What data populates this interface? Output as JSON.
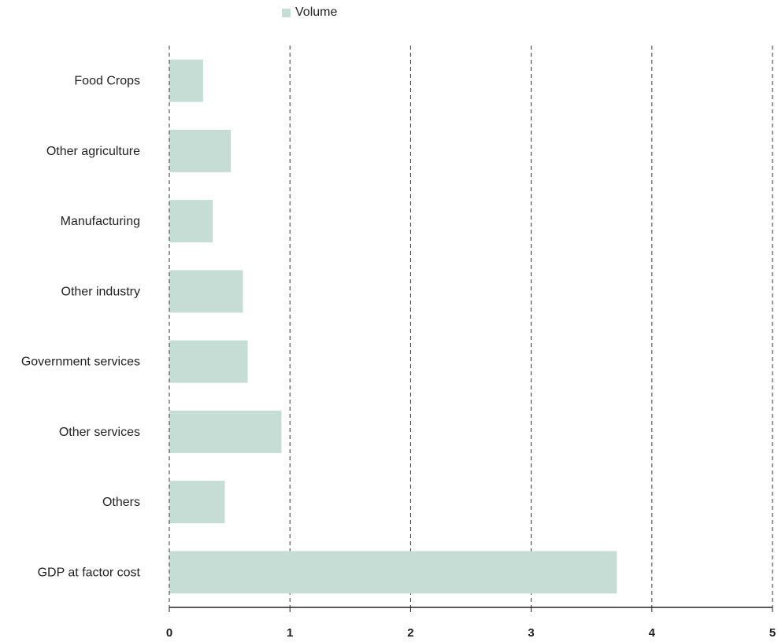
{
  "chart_data": {
    "type": "bar",
    "orientation": "horizontal",
    "categories": [
      "Food Crops",
      "Other agriculture",
      "Manufacturing",
      "Other industry",
      "Government services",
      "Other services",
      "Others ",
      "GDP at factor cost"
    ],
    "series": [
      {
        "name": "Volume",
        "values": [
          0.28,
          0.51,
          0.36,
          0.61,
          0.65,
          0.93,
          0.46,
          3.71
        ]
      }
    ],
    "xlim": [
      0,
      5
    ],
    "xticks": [
      "0",
      "1",
      "2",
      "3",
      "4",
      "5"
    ],
    "grid": "vertical-dashed",
    "legend": "top-center",
    "bar_color": "#c5ddd5"
  }
}
